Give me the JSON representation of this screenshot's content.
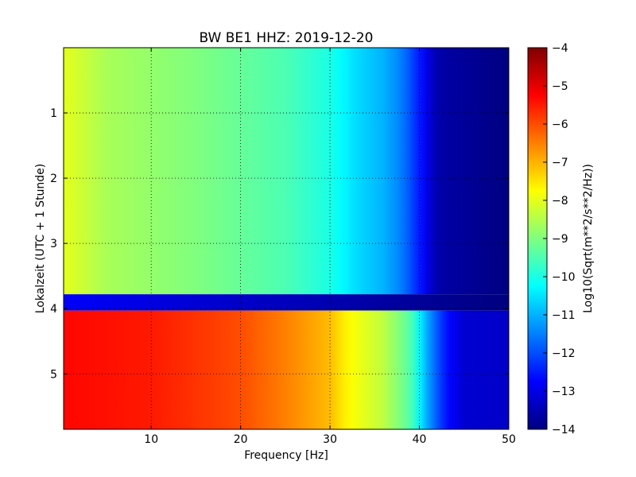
{
  "chart_data": {
    "type": "heatmap",
    "title": "BW BE1 HHZ: 2019-12-20",
    "xlabel": "Frequency [Hz]",
    "ylabel": "Lokalzeit (UTC + 1 Stunde)",
    "xlim": [
      0.2,
      50
    ],
    "ylim": [
      5.85,
      0.0
    ],
    "x_ticks": [
      10,
      20,
      30,
      40,
      50
    ],
    "y_ticks": [
      1,
      2,
      3,
      4,
      5
    ],
    "grid": true,
    "colormap": "jet",
    "colorbar": {
      "label": "Log10(Sqrt(m**2/s**2/Hz))",
      "range": [
        -14,
        -4
      ],
      "ticks": [
        -4,
        -5,
        -6,
        -7,
        -8,
        -9,
        -10,
        -11,
        -12,
        -13,
        -14
      ]
    },
    "segments": [
      {
        "time_range": [
          0.0,
          3.78
        ],
        "level_vs_frequency": [
          [
            0.2,
            -8.0
          ],
          [
            5,
            -8.6
          ],
          [
            15,
            -9.0
          ],
          [
            25,
            -9.5
          ],
          [
            30,
            -10.0
          ],
          [
            33,
            -10.6
          ],
          [
            36,
            -11.0
          ],
          [
            38,
            -11.5
          ],
          [
            40,
            -12.5
          ],
          [
            42,
            -13.6
          ],
          [
            50,
            -14.0
          ]
        ]
      },
      {
        "time_range": [
          3.78,
          4.03
        ],
        "level_vs_frequency": [
          [
            0.2,
            -12.8
          ],
          [
            50,
            -14.0
          ]
        ]
      },
      {
        "time_range": [
          4.03,
          5.85
        ],
        "level_vs_frequency": [
          [
            0.2,
            -5.3
          ],
          [
            10,
            -5.5
          ],
          [
            20,
            -6.0
          ],
          [
            25,
            -6.5
          ],
          [
            30,
            -7.1
          ],
          [
            32,
            -7.7
          ],
          [
            36,
            -8.4
          ],
          [
            39,
            -9.4
          ],
          [
            41,
            -11.2
          ],
          [
            43,
            -12.6
          ],
          [
            45,
            -13.2
          ],
          [
            50,
            -13.3
          ]
        ]
      }
    ]
  }
}
